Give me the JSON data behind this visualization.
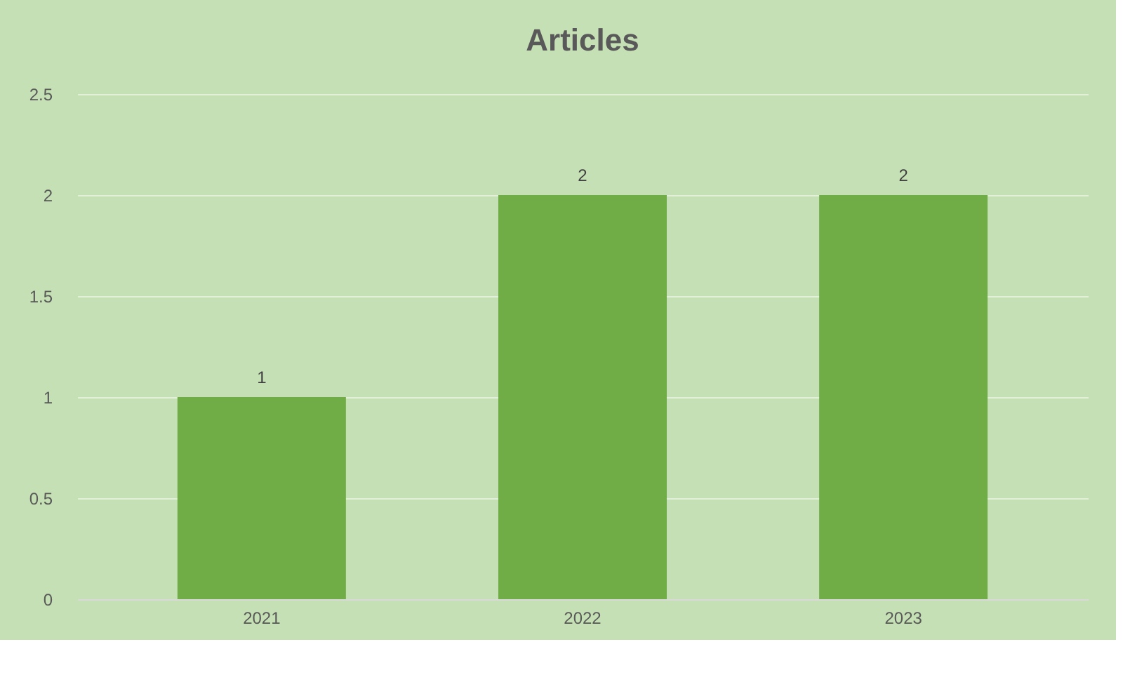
{
  "chart_data": {
    "type": "bar",
    "title": "Articles",
    "categories": [
      "2021",
      "2022",
      "2023"
    ],
    "values": [
      1,
      2,
      2
    ],
    "color": "#70ad47",
    "ylim": [
      0,
      2.5
    ],
    "yticks": [
      0,
      0.5,
      1,
      1.5,
      2,
      2.5
    ],
    "grid": "y",
    "data_labels": true
  }
}
